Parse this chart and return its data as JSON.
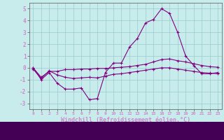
{
  "xlabel": "Windchill (Refroidissement éolien,°C)",
  "hours": [
    0,
    1,
    2,
    3,
    4,
    5,
    6,
    7,
    8,
    9,
    10,
    11,
    12,
    13,
    14,
    15,
    16,
    17,
    18,
    19,
    20,
    21,
    22,
    23
  ],
  "line1": [
    0.0,
    -1.0,
    -0.4,
    -1.3,
    -1.8,
    -1.8,
    -1.7,
    -2.7,
    -2.6,
    -0.4,
    0.4,
    0.4,
    1.75,
    2.5,
    3.8,
    4.1,
    5.0,
    4.6,
    3.0,
    1.0,
    0.2,
    -0.5,
    -0.5,
    -0.4
  ],
  "line2": [
    0.0,
    -0.8,
    -0.3,
    -0.3,
    -0.15,
    -0.15,
    -0.1,
    -0.1,
    -0.05,
    -0.05,
    0.0,
    0.05,
    0.1,
    0.2,
    0.3,
    0.5,
    0.7,
    0.75,
    0.6,
    0.5,
    0.35,
    0.2,
    0.1,
    0.05
  ],
  "line3": [
    -0.1,
    -0.9,
    -0.25,
    -0.6,
    -0.8,
    -0.9,
    -0.85,
    -0.8,
    -0.85,
    -0.7,
    -0.55,
    -0.5,
    -0.4,
    -0.3,
    -0.2,
    -0.1,
    0.0,
    0.0,
    -0.1,
    -0.2,
    -0.3,
    -0.4,
    -0.45,
    -0.5
  ],
  "bg_color": "#c8ecec",
  "plot_bg": "#c8ecec",
  "label_bg": "#6a0080",
  "line_color": "#800080",
  "label_color": "#cc88cc",
  "tick_color": "#cc88cc",
  "grid_color": "#99cccc",
  "ylim": [
    -3.5,
    5.5
  ],
  "yticks": [
    -3,
    -2,
    -1,
    0,
    1,
    2,
    3,
    4,
    5
  ],
  "xticks": [
    0,
    1,
    2,
    3,
    4,
    5,
    6,
    7,
    8,
    9,
    10,
    11,
    12,
    13,
    14,
    15,
    16,
    17,
    18,
    19,
    20,
    21,
    22,
    23
  ],
  "xtick_labels": [
    "0",
    "1",
    "2",
    "3",
    "4",
    "5",
    "6",
    "7",
    "8",
    "9",
    "10",
    "11",
    "12",
    "13",
    "14",
    "15",
    "16",
    "17",
    "18",
    "19",
    "20",
    "21",
    "22",
    "23"
  ]
}
